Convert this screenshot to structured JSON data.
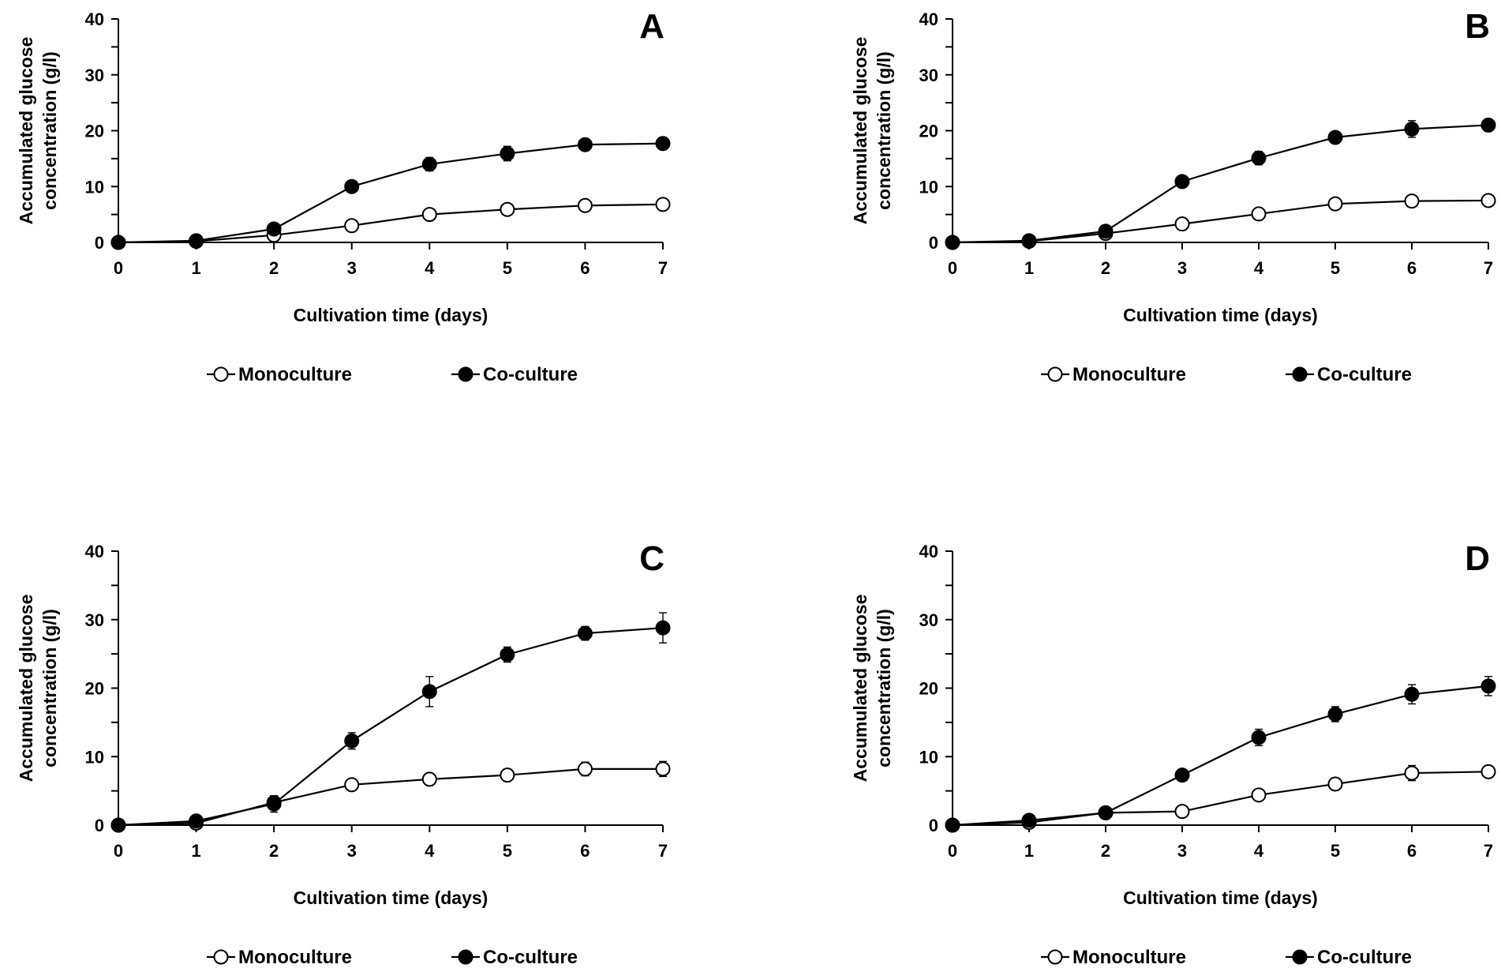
{
  "chart_data": [
    {
      "type": "line",
      "panel_label": "A",
      "xlabel": "Cultivation time (days)",
      "ylabel_lines": [
        "Accumulated glucose",
        "concentration (g/l)"
      ],
      "xlim": [
        0,
        7
      ],
      "ylim": [
        0,
        40
      ],
      "xticks": [
        "0",
        "1",
        "2",
        "3",
        "4",
        "5",
        "6",
        "7"
      ],
      "yticks": [
        "0",
        "10",
        "20",
        "30",
        "40"
      ],
      "grid": false,
      "legend_position": "bottom",
      "x": [
        0,
        1,
        2,
        3,
        4,
        5,
        6,
        7
      ],
      "series": [
        {
          "name": "Monoculture",
          "marker": "open-circle",
          "values": [
            0,
            0.2,
            1.3,
            3.0,
            5.0,
            5.9,
            6.6,
            6.8
          ],
          "errors": [
            0,
            0,
            0.3,
            0.4,
            1.0,
            0.8,
            0.9,
            1.0
          ]
        },
        {
          "name": "Co-culture",
          "marker": "filled-circle",
          "values": [
            0,
            0.3,
            2.4,
            10.0,
            14.0,
            15.9,
            17.5,
            17.7
          ],
          "errors": [
            0,
            0,
            0.3,
            0.5,
            1.2,
            1.3,
            1.1,
            1.1
          ]
        }
      ]
    },
    {
      "type": "line",
      "panel_label": "B",
      "xlabel": "Cultivation time (days)",
      "ylabel_lines": [
        "Accumulated glucose",
        "concentration (g/l)"
      ],
      "xlim": [
        0,
        7
      ],
      "ylim": [
        0,
        40
      ],
      "xticks": [
        "0",
        "1",
        "2",
        "3",
        "4",
        "5",
        "6",
        "7"
      ],
      "yticks": [
        "0",
        "10",
        "20",
        "30",
        "40"
      ],
      "grid": false,
      "legend_position": "bottom",
      "x": [
        0,
        1,
        2,
        3,
        4,
        5,
        6,
        7
      ],
      "series": [
        {
          "name": "Monoculture",
          "marker": "open-circle",
          "values": [
            0,
            0.2,
            1.6,
            3.3,
            5.1,
            6.9,
            7.4,
            7.5
          ],
          "errors": [
            0,
            0,
            0.3,
            0.4,
            0.6,
            0.9,
            1.0,
            1.0
          ]
        },
        {
          "name": "Co-culture",
          "marker": "filled-circle",
          "values": [
            0,
            0.3,
            2.0,
            10.9,
            15.1,
            18.8,
            20.3,
            21.0
          ],
          "errors": [
            0,
            0,
            0.3,
            0.8,
            1.2,
            1.0,
            1.5,
            1.1
          ]
        }
      ]
    },
    {
      "type": "line",
      "panel_label": "C",
      "xlabel": "Cultivation time (days)",
      "ylabel_lines": [
        "Accumulated glucose",
        "concentration (g/l)"
      ],
      "xlim": [
        0,
        7
      ],
      "ylim": [
        0,
        40
      ],
      "xticks": [
        "0",
        "1",
        "2",
        "3",
        "4",
        "5",
        "6",
        "7"
      ],
      "yticks": [
        "0",
        "10",
        "20",
        "30",
        "40"
      ],
      "grid": false,
      "legend_position": "bottom",
      "x": [
        0,
        1,
        2,
        3,
        4,
        5,
        6,
        7
      ],
      "series": [
        {
          "name": "Monoculture",
          "marker": "open-circle",
          "values": [
            0,
            0.3,
            3.3,
            5.9,
            6.7,
            7.3,
            8.2,
            8.2
          ],
          "errors": [
            0,
            0,
            0.6,
            0.4,
            0.5,
            0.9,
            1.0,
            1.1
          ]
        },
        {
          "name": "Co-culture",
          "marker": "filled-circle",
          "values": [
            0,
            0.6,
            3.1,
            12.3,
            19.5,
            24.9,
            28.0,
            28.8
          ],
          "errors": [
            0,
            0,
            1.2,
            1.2,
            2.2,
            1.1,
            1.0,
            2.2
          ]
        }
      ]
    },
    {
      "type": "line",
      "panel_label": "D",
      "xlabel": "Cultivation time (days)",
      "ylabel_lines": [
        "Accumulated glucose",
        "concentration (g/l)"
      ],
      "xlim": [
        0,
        7
      ],
      "ylim": [
        0,
        40
      ],
      "xticks": [
        "0",
        "1",
        "2",
        "3",
        "4",
        "5",
        "6",
        "7"
      ],
      "yticks": [
        "0",
        "10",
        "20",
        "30",
        "40"
      ],
      "grid": false,
      "legend_position": "bottom",
      "x": [
        0,
        1,
        2,
        3,
        4,
        5,
        6,
        7
      ],
      "series": [
        {
          "name": "Monoculture",
          "marker": "open-circle",
          "values": [
            0,
            0.4,
            1.8,
            2.0,
            4.4,
            6.0,
            7.6,
            7.8
          ],
          "errors": [
            0,
            0,
            0.2,
            0.2,
            0.6,
            0.9,
            1.1,
            0.9
          ]
        },
        {
          "name": "Co-culture",
          "marker": "filled-circle",
          "values": [
            0,
            0.7,
            1.8,
            7.3,
            12.8,
            16.2,
            19.1,
            20.3
          ],
          "errors": [
            0,
            0,
            0.2,
            0.5,
            1.2,
            1.1,
            1.4,
            1.4
          ]
        }
      ]
    }
  ]
}
